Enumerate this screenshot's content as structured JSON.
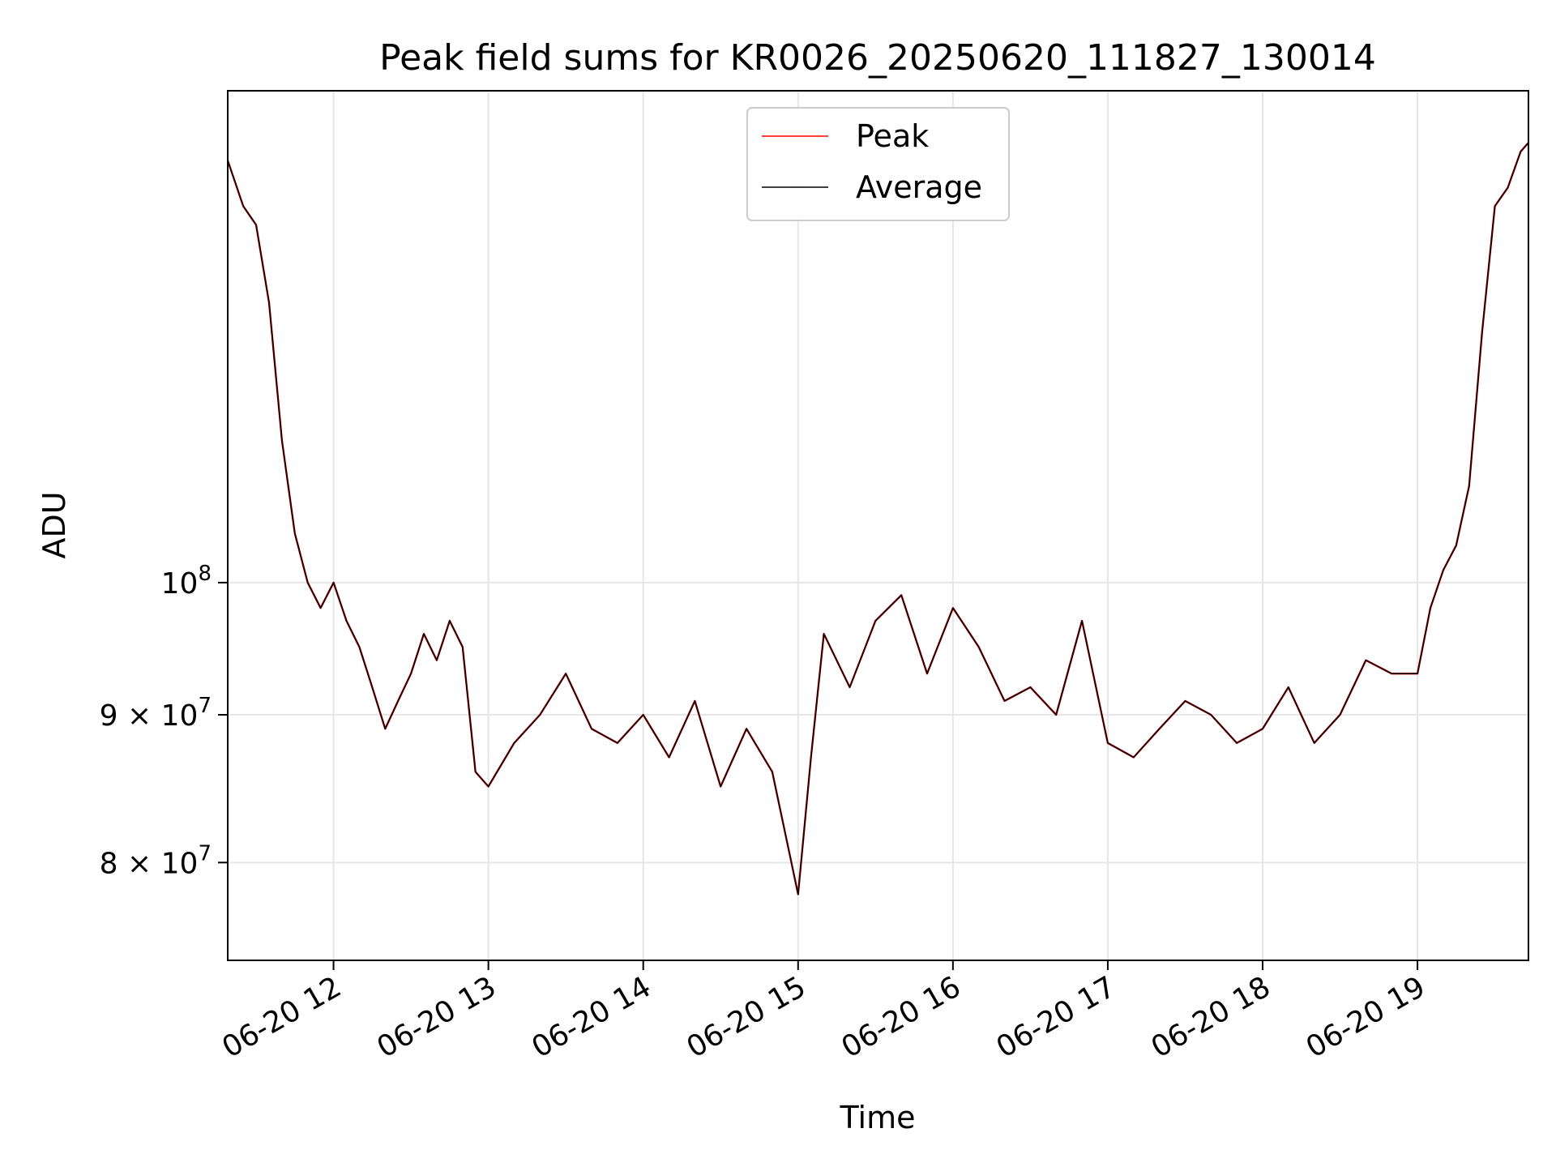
{
  "chart_data": {
    "type": "line",
    "title": "Peak field sums for KR0026_20250620_111827_130014",
    "xlabel": "Time",
    "ylabel": "ADU",
    "x_start": "2025-06-20T11:19:00",
    "x_end": "2025-06-20T19:43:00",
    "xlim": [
      "2025-06-20T11:19:00",
      "2025-06-20T19:43:00"
    ],
    "x_ticks": [
      "06-20 12",
      "06-20 13",
      "06-20 14",
      "06-20 15",
      "06-20 16",
      "06-20 17",
      "06-20 18",
      "06-20 19"
    ],
    "y_scale": "log",
    "ylim": [
      74000000,
      148000000
    ],
    "y_ticks": [
      {
        "value": 80000000,
        "base": "8",
        "mult": "×",
        "exp_base": "10",
        "exp": "7"
      },
      {
        "value": 90000000,
        "base": "9",
        "mult": "×",
        "exp_base": "10",
        "exp": "7"
      },
      {
        "value": 100000000,
        "base": "",
        "mult": "",
        "exp_base": "10",
        "exp": "8"
      }
    ],
    "grid": true,
    "legend": {
      "position": "top-center",
      "entries": [
        {
          "label": "Peak",
          "color": "#ff0000"
        },
        {
          "label": "Average",
          "color": "#000000"
        }
      ]
    },
    "series": [
      {
        "name": "Peak",
        "color": "#ff0000",
        "x": [
          "11:19",
          "11:25",
          "11:30",
          "11:35",
          "11:40",
          "11:45",
          "11:50",
          "11:55",
          "12:00",
          "12:05",
          "12:10",
          "12:15",
          "12:20",
          "12:25",
          "12:30",
          "12:35",
          "12:40",
          "12:45",
          "12:50",
          "12:55",
          "13:00",
          "13:10",
          "13:20",
          "13:30",
          "13:40",
          "13:50",
          "14:00",
          "14:10",
          "14:20",
          "14:30",
          "14:40",
          "14:50",
          "15:00",
          "15:05",
          "15:10",
          "15:20",
          "15:30",
          "15:40",
          "15:50",
          "16:00",
          "16:10",
          "16:20",
          "16:30",
          "16:40",
          "16:50",
          "17:00",
          "17:10",
          "17:20",
          "17:30",
          "17:40",
          "17:50",
          "18:00",
          "18:10",
          "18:20",
          "18:30",
          "18:40",
          "18:50",
          "19:00",
          "19:05",
          "19:10",
          "19:15",
          "19:20",
          "19:25",
          "19:30",
          "19:35",
          "19:40",
          "19:43"
        ],
        "values": [
          140000000,
          135000000,
          133000000,
          125000000,
          112000000,
          104000000,
          100000000,
          98000000,
          100000000,
          97000000,
          95000000,
          92000000,
          89000000,
          91000000,
          93000000,
          96000000,
          94000000,
          97000000,
          95000000,
          86000000,
          85000000,
          88000000,
          90000000,
          93000000,
          89000000,
          88000000,
          90000000,
          87000000,
          91000000,
          85000000,
          89000000,
          86000000,
          78000000,
          87000000,
          96000000,
          92000000,
          97000000,
          99000000,
          93000000,
          98000000,
          95000000,
          91000000,
          92000000,
          90000000,
          97000000,
          88000000,
          87000000,
          89000000,
          91000000,
          90000000,
          88000000,
          89000000,
          92000000,
          88000000,
          90000000,
          94000000,
          93000000,
          93000000,
          98000000,
          101000000,
          103000000,
          108000000,
          122000000,
          135000000,
          137000000,
          141000000,
          142000000
        ]
      },
      {
        "name": "Average",
        "color": "#000000",
        "x": [
          "11:19",
          "11:25",
          "11:30",
          "11:35",
          "11:40",
          "11:45",
          "11:50",
          "11:55",
          "12:00",
          "12:05",
          "12:10",
          "12:15",
          "12:20",
          "12:25",
          "12:30",
          "12:35",
          "12:40",
          "12:45",
          "12:50",
          "12:55",
          "13:00",
          "13:10",
          "13:20",
          "13:30",
          "13:40",
          "13:50",
          "14:00",
          "14:10",
          "14:20",
          "14:30",
          "14:40",
          "14:50",
          "15:00",
          "15:05",
          "15:10",
          "15:20",
          "15:30",
          "15:40",
          "15:50",
          "16:00",
          "16:10",
          "16:20",
          "16:30",
          "16:40",
          "16:50",
          "17:00",
          "17:10",
          "17:20",
          "17:30",
          "17:40",
          "17:50",
          "18:00",
          "18:10",
          "18:20",
          "18:30",
          "18:40",
          "18:50",
          "19:00",
          "19:05",
          "19:10",
          "19:15",
          "19:20",
          "19:25",
          "19:30",
          "19:35",
          "19:40",
          "19:43"
        ],
        "values": [
          140000000,
          135000000,
          133000000,
          125000000,
          112000000,
          104000000,
          100000000,
          98000000,
          100000000,
          97000000,
          95000000,
          92000000,
          89000000,
          91000000,
          93000000,
          96000000,
          94000000,
          97000000,
          95000000,
          86000000,
          85000000,
          88000000,
          90000000,
          93000000,
          89000000,
          88000000,
          90000000,
          87000000,
          91000000,
          85000000,
          89000000,
          86000000,
          78000000,
          87000000,
          96000000,
          92000000,
          97000000,
          99000000,
          93000000,
          98000000,
          95000000,
          91000000,
          92000000,
          90000000,
          97000000,
          88000000,
          87000000,
          89000000,
          91000000,
          90000000,
          88000000,
          89000000,
          92000000,
          88000000,
          90000000,
          94000000,
          93000000,
          93000000,
          98000000,
          101000000,
          103000000,
          108000000,
          122000000,
          135000000,
          137000000,
          141000000,
          142000000
        ]
      }
    ]
  }
}
